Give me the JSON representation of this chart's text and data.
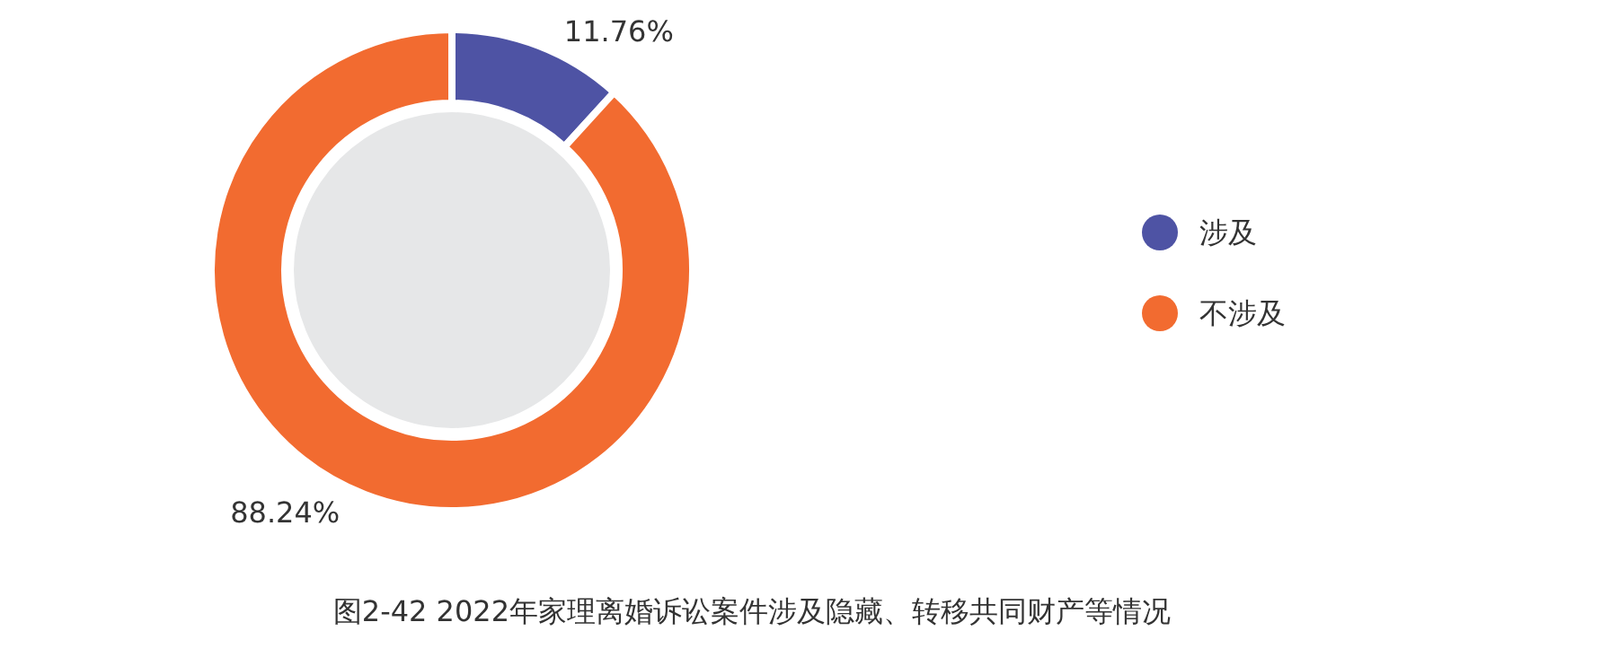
{
  "chart_data": {
    "type": "donut",
    "title": "图2-42  2022年家理离婚诉讼案件涉及隐藏、转移共同财产等情况",
    "categories": [
      "涉及",
      "不涉及"
    ],
    "values": [
      11.76,
      88.24
    ],
    "colors": [
      "#4e53a4",
      "#f26b30"
    ],
    "value_labels": [
      "11.76%",
      "88.24%"
    ],
    "legend": "right"
  }
}
